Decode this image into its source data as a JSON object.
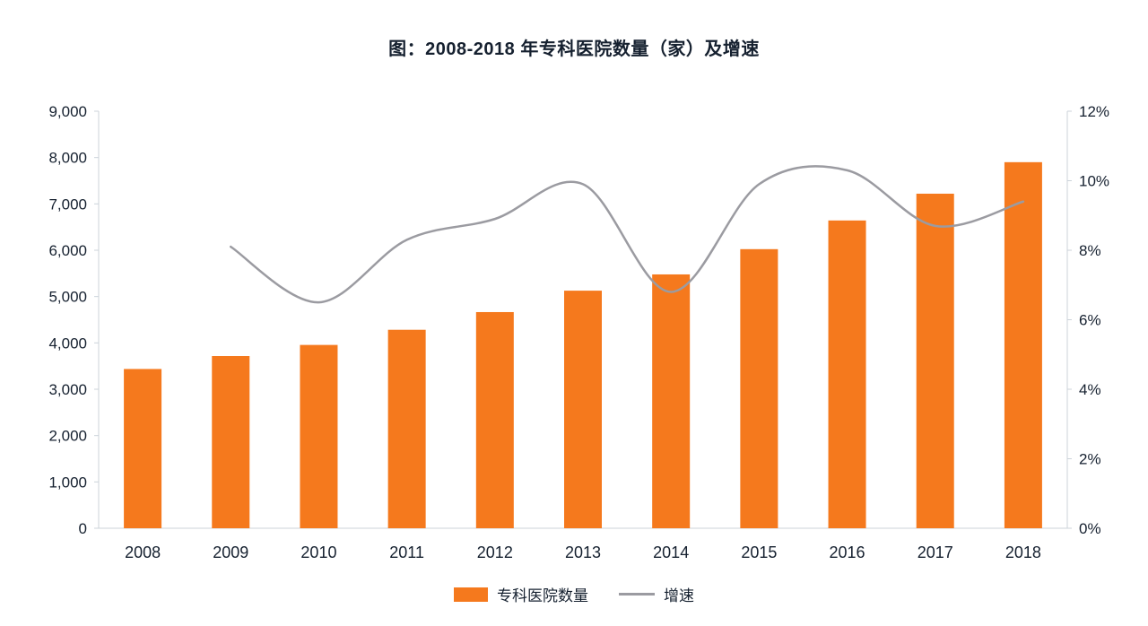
{
  "title": "图：2008-2018 年专科医院数量（家）及增速",
  "chart_data": {
    "type": "bar",
    "subtype": "bar+line combo, dual axis",
    "categories": [
      "2008",
      "2009",
      "2010",
      "2011",
      "2012",
      "2013",
      "2014",
      "2015",
      "2016",
      "2017",
      "2018"
    ],
    "series": [
      {
        "name": "专科医院数量",
        "type": "bar",
        "axis": "left",
        "color": "#f5791d",
        "values": [
          3437,
          3716,
          3956,
          4283,
          4665,
          5127,
          5478,
          6023,
          6642,
          7220,
          7900
        ]
      },
      {
        "name": "增速",
        "type": "line",
        "axis": "right",
        "color": "#9b9ba1",
        "values": [
          null,
          8.1,
          6.5,
          8.3,
          8.9,
          9.9,
          6.8,
          9.9,
          10.3,
          8.7,
          9.4
        ]
      }
    ],
    "left_axis": {
      "min": 0,
      "max": 9000,
      "step": 1000,
      "tick_labels": [
        "0",
        "1,000",
        "2,000",
        "3,000",
        "4,000",
        "5,000",
        "6,000",
        "7,000",
        "8,000",
        "9,000"
      ]
    },
    "right_axis": {
      "min": 0,
      "max": 12,
      "step": 2,
      "tick_labels": [
        "0%",
        "2%",
        "4%",
        "6%",
        "8%",
        "10%",
        "12%"
      ]
    },
    "grid": "off",
    "legend_position": "bottom-center",
    "legend": [
      {
        "label": "专科医院数量",
        "marker": "rect",
        "color": "#f5791d"
      },
      {
        "label": "增速",
        "marker": "line",
        "color": "#9b9ba1"
      }
    ],
    "text_color": "#15202f",
    "axis_line_color": "#ccd3da"
  }
}
